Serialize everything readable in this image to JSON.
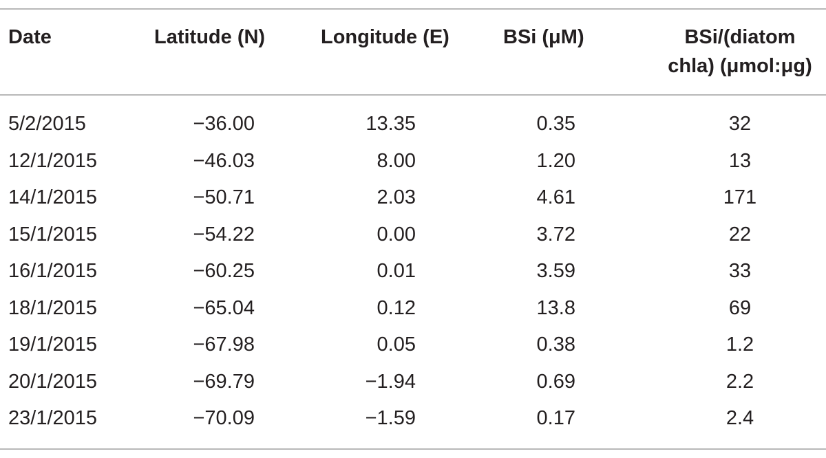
{
  "table": {
    "headers": {
      "date": "Date",
      "latitude": "Latitude (N)",
      "longitude": "Longitude (E)",
      "bsi": "BSi (μM)",
      "ratio_line1": "BSi/(diatom",
      "ratio_line2": "chla) (μmol:μg)"
    },
    "rows": [
      {
        "date": "5/2/2015",
        "lat": "−36.00",
        "lon": "13.35",
        "bsi": "0.35",
        "ratio": "32"
      },
      {
        "date": "12/1/2015",
        "lat": "−46.03",
        "lon": "8.00",
        "bsi": "1.20",
        "ratio": "13"
      },
      {
        "date": "14/1/2015",
        "lat": "−50.71",
        "lon": "2.03",
        "bsi": "4.61",
        "ratio": "171"
      },
      {
        "date": "15/1/2015",
        "lat": "−54.22",
        "lon": "0.00",
        "bsi": "3.72",
        "ratio": "22"
      },
      {
        "date": "16/1/2015",
        "lat": "−60.25",
        "lon": "0.01",
        "bsi": "3.59",
        "ratio": "33"
      },
      {
        "date": "18/1/2015",
        "lat": "−65.04",
        "lon": "0.12",
        "bsi": "13.8",
        "ratio": "69"
      },
      {
        "date": "19/1/2015",
        "lat": "−67.98",
        "lon": "0.05",
        "bsi": "0.38",
        "ratio": "1.2"
      },
      {
        "date": "20/1/2015",
        "lat": "−69.79",
        "lon": "−1.94",
        "bsi": "0.69",
        "ratio": "2.2"
      },
      {
        "date": "23/1/2015",
        "lat": "−70.09",
        "lon": "−1.59",
        "bsi": "0.17",
        "ratio": "2.4"
      }
    ]
  }
}
